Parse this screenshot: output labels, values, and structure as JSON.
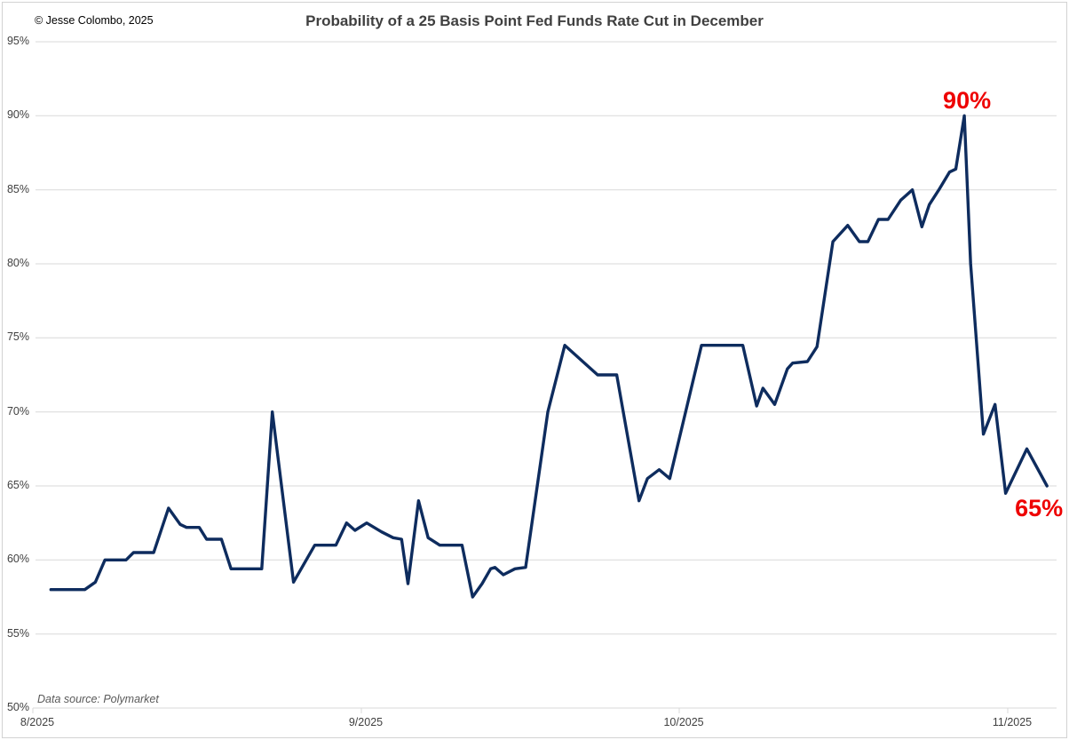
{
  "header": {
    "copyright": "© Jesse Colombo, 2025"
  },
  "footer": {
    "data_source": "Data source: Polymarket"
  },
  "colors": {
    "background": "#ffffff",
    "frame_border": "#d2d2d2",
    "line": "#0e2c5e",
    "grid": "#d9d9d9",
    "axis_text": "#404040",
    "title_text": "#404040",
    "copyright_text": "#000000",
    "source_text": "#595959",
    "annotation": "#ee0000"
  },
  "annotations": [
    {
      "label": "90%",
      "day": 87.9,
      "value": 90,
      "placement": "above"
    },
    {
      "label": "65%",
      "day": 95.7,
      "value": 65,
      "placement": "below"
    }
  ],
  "chart_data": {
    "type": "line",
    "title": "Probability of a 25 Basis Point Fed Funds Rate Cut in December",
    "xlabel": "",
    "ylabel": "",
    "ylim": [
      50,
      95
    ],
    "grid": "horizontal",
    "legend": "none",
    "x_axis": {
      "unit": "days since 8/1/2025",
      "tick_labels": [
        "8/2025",
        "9/2025",
        "10/2025",
        "11/2025"
      ],
      "tick_days": [
        0,
        31,
        61,
        92
      ]
    },
    "y_axis": {
      "tick_labels": [
        "95%",
        "90%",
        "85%",
        "80%",
        "75%",
        "70%",
        "65%",
        "60%",
        "55%",
        "50%"
      ],
      "min": 50,
      "max": 95,
      "step": 5,
      "unit": "%"
    },
    "series": [
      {
        "name": "Probability of a 25 Basis Point Fed Funds Rate Cut in December",
        "points": [
          [
            1.7,
            58
          ],
          [
            4.9,
            58
          ],
          [
            5.9,
            58.5
          ],
          [
            6.8,
            60
          ],
          [
            8.8,
            60
          ],
          [
            9.5,
            60.5
          ],
          [
            11.4,
            60.5
          ],
          [
            12.8,
            63.5
          ],
          [
            13.9,
            62.4
          ],
          [
            14.5,
            62.2
          ],
          [
            15.7,
            62.2
          ],
          [
            16.4,
            61.4
          ],
          [
            17.8,
            61.4
          ],
          [
            18.7,
            59.4
          ],
          [
            21.6,
            59.4
          ],
          [
            22.6,
            70
          ],
          [
            24.6,
            58.5
          ],
          [
            26.6,
            61
          ],
          [
            28.6,
            61
          ],
          [
            29.6,
            62.5
          ],
          [
            30.4,
            62
          ],
          [
            31.5,
            62.5
          ],
          [
            32.9,
            61.9
          ],
          [
            34.0,
            61.5
          ],
          [
            34.8,
            61.4
          ],
          [
            35.4,
            58.4
          ],
          [
            36.4,
            64
          ],
          [
            37.3,
            61.5
          ],
          [
            38.4,
            61
          ],
          [
            40.5,
            61
          ],
          [
            41.5,
            57.5
          ],
          [
            42.4,
            58.4
          ],
          [
            43.2,
            59.4
          ],
          [
            43.6,
            59.5
          ],
          [
            44.4,
            59
          ],
          [
            45.5,
            59.4
          ],
          [
            46.5,
            59.5
          ],
          [
            48.6,
            70
          ],
          [
            50.2,
            74.5
          ],
          [
            52.2,
            73.2
          ],
          [
            53.3,
            72.5
          ],
          [
            55.1,
            72.5
          ],
          [
            57.2,
            64
          ],
          [
            58.0,
            65.5
          ],
          [
            59.1,
            66.1
          ],
          [
            60.1,
            65.5
          ],
          [
            63.1,
            74.5
          ],
          [
            67.0,
            74.5
          ],
          [
            68.3,
            70.4
          ],
          [
            68.9,
            71.6
          ],
          [
            70.0,
            70.5
          ],
          [
            71.2,
            72.9
          ],
          [
            71.7,
            73.3
          ],
          [
            73.1,
            73.4
          ],
          [
            74.0,
            74.4
          ],
          [
            75.5,
            81.5
          ],
          [
            76.9,
            82.6
          ],
          [
            78.0,
            81.5
          ],
          [
            78.8,
            81.5
          ],
          [
            79.8,
            83
          ],
          [
            80.7,
            83
          ],
          [
            81.9,
            84.3
          ],
          [
            83.0,
            85
          ],
          [
            83.9,
            82.5
          ],
          [
            84.6,
            84
          ],
          [
            85.5,
            85
          ],
          [
            86.5,
            86.2
          ],
          [
            87.1,
            86.4
          ],
          [
            87.9,
            90
          ],
          [
            88.5,
            80
          ],
          [
            89.7,
            68.5
          ],
          [
            90.8,
            70.5
          ],
          [
            91.8,
            64.5
          ],
          [
            93.8,
            67.5
          ],
          [
            95.7,
            65
          ]
        ]
      }
    ]
  }
}
